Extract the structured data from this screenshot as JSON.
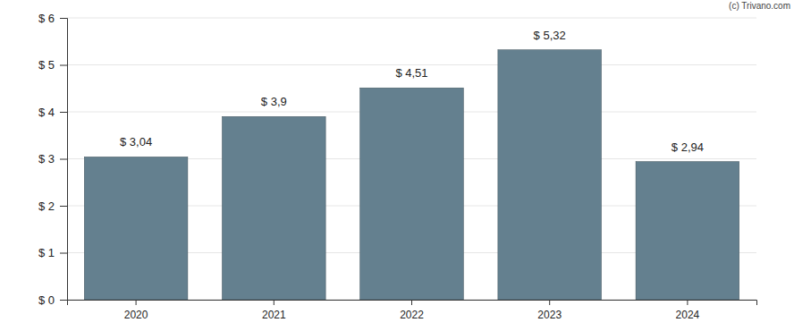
{
  "chart_data": {
    "type": "bar",
    "annotations": [
      "(c) Trivano.com"
    ],
    "categories": [
      "2020",
      "2021",
      "2022",
      "2023",
      "2024"
    ],
    "values": [
      3.04,
      3.9,
      4.51,
      5.32,
      2.94
    ],
    "value_labels": [
      "$ 3,04",
      "$ 3,9",
      "$ 4,51",
      "$ 5,32",
      "$ 2,94"
    ],
    "data_labels": true,
    "color": "#64808f",
    "ylim": [
      0,
      6
    ],
    "yticks": [
      {
        "value": 0,
        "label": "$ 0"
      },
      {
        "value": 1,
        "label": "$ 1"
      },
      {
        "value": 2,
        "label": "$ 2"
      },
      {
        "value": 3,
        "label": "$ 3"
      },
      {
        "value": 4,
        "label": "$ 4"
      },
      {
        "value": 5,
        "label": "$ 5"
      },
      {
        "value": 6,
        "label": "$ 6"
      }
    ],
    "grid": true
  }
}
